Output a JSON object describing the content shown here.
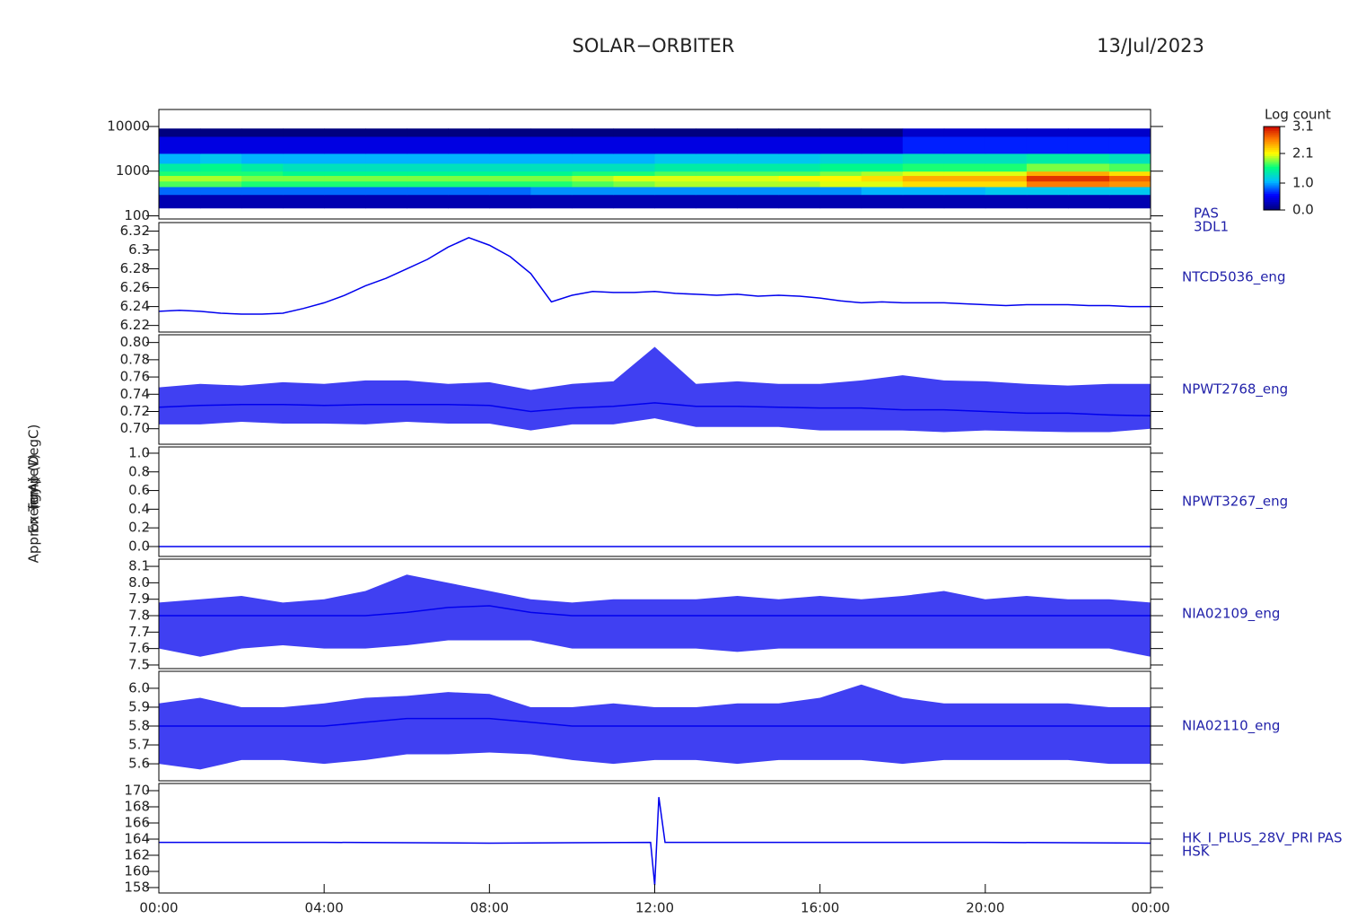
{
  "page": {
    "title": "SOLAR−ORBITER",
    "date": "13/Jul/2023"
  },
  "chart_data": [
    {
      "type": "heatmap",
      "side_label": [
        "PAS",
        "3DL1"
      ],
      "ylabel": "Energy (eV)",
      "log_y": true,
      "xlim": [
        0,
        24
      ],
      "ylim": [
        85,
        24000
      ],
      "yticks": [
        100,
        1000,
        10000
      ],
      "x": [
        0,
        1,
        2,
        3,
        4,
        5,
        6,
        7,
        8,
        9,
        10,
        11,
        12,
        13,
        14,
        15,
        16,
        17,
        18,
        19,
        20,
        21,
        22,
        23,
        24
      ],
      "bins": [
        150,
        300,
        450,
        600,
        800,
        1000,
        1500,
        2500,
        6000,
        9000
      ],
      "z": [
        [
          0.2,
          0.2,
          0.2,
          0.2,
          0.2,
          0.2,
          0.2,
          0.2,
          0.2,
          0.2,
          0.2,
          0.2,
          0.2,
          0.2,
          0.2,
          0.2,
          0.2,
          0.2,
          0.2,
          0.2,
          0.2,
          0.2,
          0.2,
          0.2
        ],
        [
          0.8,
          0.8,
          0.8,
          0.8,
          0.8,
          0.8,
          0.8,
          0.8,
          0.8,
          0.9,
          0.9,
          0.9,
          0.9,
          0.9,
          0.9,
          0.9,
          0.9,
          1.0,
          1.0,
          1.0,
          1.1,
          1.1,
          1.1,
          1.1
        ],
        [
          1.7,
          1.7,
          1.6,
          1.6,
          1.6,
          1.6,
          1.6,
          1.6,
          1.6,
          1.6,
          1.7,
          1.8,
          1.9,
          1.9,
          1.9,
          1.9,
          2.0,
          2.0,
          2.2,
          2.2,
          2.2,
          2.6,
          2.6,
          2.5
        ],
        [
          1.9,
          1.9,
          1.8,
          1.8,
          1.8,
          1.8,
          1.8,
          1.8,
          1.8,
          1.8,
          1.9,
          2.0,
          2.0,
          2.0,
          2.0,
          2.1,
          2.1,
          2.2,
          2.4,
          2.4,
          2.4,
          2.9,
          2.9,
          2.7
        ],
        [
          1.6,
          1.6,
          1.6,
          1.5,
          1.5,
          1.5,
          1.5,
          1.5,
          1.5,
          1.5,
          1.6,
          1.6,
          1.7,
          1.7,
          1.7,
          1.7,
          1.8,
          1.9,
          2.0,
          2.0,
          2.0,
          2.4,
          2.4,
          2.2
        ],
        [
          1.4,
          1.5,
          1.4,
          1.3,
          1.3,
          1.3,
          1.3,
          1.3,
          1.3,
          1.3,
          1.3,
          1.3,
          1.4,
          1.4,
          1.4,
          1.4,
          1.5,
          1.5,
          1.6,
          1.6,
          1.6,
          1.8,
          1.8,
          1.7
        ],
        [
          1.0,
          1.1,
          1.0,
          1.0,
          1.0,
          1.0,
          1.0,
          1.0,
          1.0,
          1.0,
          1.0,
          1.0,
          1.1,
          1.1,
          1.1,
          1.1,
          1.2,
          1.2,
          1.3,
          1.3,
          1.3,
          1.4,
          1.4,
          1.3
        ],
        [
          0.4,
          0.4,
          0.4,
          0.4,
          0.4,
          0.4,
          0.4,
          0.4,
          0.4,
          0.4,
          0.4,
          0.4,
          0.4,
          0.4,
          0.4,
          0.4,
          0.4,
          0.4,
          0.6,
          0.6,
          0.6,
          0.6,
          0.6,
          0.6
        ],
        [
          0.0,
          0.0,
          0.0,
          0.0,
          0.0,
          0.0,
          0.0,
          0.0,
          0.0,
          0.0,
          0.0,
          0.0,
          0.0,
          0.0,
          0.0,
          0.0,
          0.0,
          0.0,
          0.3,
          0.3,
          0.3,
          0.3,
          0.3,
          0.3
        ]
      ],
      "colorbar": {
        "label": "Log count",
        "zlim": [
          0,
          3.1
        ],
        "ticks": [
          {
            "value": 0,
            "label": "0.0"
          },
          {
            "value": 1,
            "label": "1.0"
          },
          2.1,
          3.1
        ],
        "colormap": [
          "#00007f",
          "#0000ff",
          "#00bfff",
          "#00ff80",
          "#ffff00",
          "#ff8000",
          "#cc0000"
        ]
      }
    },
    {
      "type": "line",
      "side_label": [
        "NTCD5036_eng"
      ],
      "ylabel": "Approx Temp (DegC)",
      "color": "#0000ee",
      "xlim": [
        0,
        24
      ],
      "ylim": [
        6.213,
        6.329
      ],
      "yticks": [
        6.22,
        6.24,
        6.26,
        6.28,
        6.3,
        {
          "value": 6.32,
          "label": "6.32"
        }
      ],
      "x": [
        0,
        0.5,
        1,
        1.5,
        2,
        2.5,
        3,
        3.5,
        4,
        4.5,
        5,
        5.5,
        6,
        6.5,
        7,
        7.5,
        8,
        8.5,
        9,
        9.5,
        10,
        10.5,
        11,
        11.5,
        12,
        12.5,
        13,
        13.5,
        14,
        14.5,
        15,
        15.5,
        16,
        16.5,
        17,
        17.5,
        18,
        18.5,
        19,
        19.5,
        20,
        20.5,
        21,
        21.5,
        22,
        22.5,
        23,
        23.5,
        24
      ],
      "values": [
        6.235,
        6.236,
        6.235,
        6.233,
        6.232,
        6.232,
        6.233,
        6.238,
        6.244,
        6.252,
        6.262,
        6.27,
        6.28,
        6.29,
        6.303,
        6.313,
        6.305,
        6.293,
        6.275,
        6.245,
        6.252,
        6.256,
        6.255,
        6.255,
        6.256,
        6.254,
        6.253,
        6.252,
        6.253,
        6.251,
        6.252,
        6.251,
        6.249,
        6.246,
        6.244,
        6.245,
        6.244,
        6.244,
        6.244,
        6.243,
        6.242,
        6.241,
        6.242,
        6.242,
        6.242,
        6.241,
        6.241,
        6.24,
        6.24
      ]
    },
    {
      "type": "line",
      "side_label": [
        "NPWT2768_eng"
      ],
      "color": "#0000ee",
      "xlim": [
        0,
        24
      ],
      "ylim": [
        0.682,
        0.809
      ],
      "yticks": [
        {
          "value": 0.7,
          "label": "0.70"
        },
        0.72,
        0.74,
        0.76,
        0.78,
        {
          "value": 0.8,
          "label": "0.80"
        }
      ],
      "x": [
        0,
        1,
        2,
        3,
        4,
        5,
        6,
        7,
        8,
        9,
        10,
        11,
        12,
        13,
        14,
        15,
        16,
        17,
        18,
        19,
        20,
        21,
        22,
        23,
        24
      ],
      "values": [
        0.725,
        0.727,
        0.728,
        0.728,
        0.727,
        0.728,
        0.728,
        0.728,
        0.727,
        0.72,
        0.724,
        0.726,
        0.73,
        0.726,
        0.726,
        0.725,
        0.724,
        0.724,
        0.722,
        0.722,
        0.72,
        0.718,
        0.718,
        0.716,
        0.715
      ],
      "max": [
        0.748,
        0.752,
        0.75,
        0.754,
        0.752,
        0.756,
        0.756,
        0.752,
        0.754,
        0.745,
        0.752,
        0.755,
        0.795,
        0.752,
        0.755,
        0.752,
        0.752,
        0.756,
        0.762,
        0.756,
        0.755,
        0.752,
        0.75,
        0.752,
        0.752
      ],
      "min": [
        0.705,
        0.705,
        0.708,
        0.706,
        0.706,
        0.705,
        0.708,
        0.706,
        0.706,
        0.698,
        0.705,
        0.705,
        0.712,
        0.702,
        0.702,
        0.702,
        0.698,
        0.698,
        0.698,
        0.696,
        0.698,
        0.697,
        0.696,
        0.696,
        0.7
      ]
    },
    {
      "type": "line",
      "side_label": [
        "NPWT3267_eng"
      ],
      "color": "#0000ee",
      "xlim": [
        0,
        24
      ],
      "ylim": [
        -0.106,
        1.067
      ],
      "yticks": [
        {
          "value": 0,
          "label": "0.0"
        },
        0.2,
        0.4,
        0.6,
        0.8,
        {
          "value": 1,
          "label": "1.0"
        }
      ],
      "x": [
        0,
        24
      ],
      "values": [
        0,
        0
      ]
    },
    {
      "type": "line",
      "side_label": [
        "NIA02109_eng"
      ],
      "color": "#0000ee",
      "xlim": [
        0,
        24
      ],
      "ylim": [
        7.478,
        8.144
      ],
      "yticks": [
        7.5,
        7.6,
        7.7,
        7.8,
        7.9,
        {
          "value": 8,
          "label": "8.0"
        },
        8.1
      ],
      "x": [
        0,
        1,
        2,
        3,
        4,
        5,
        6,
        7,
        8,
        9,
        10,
        11,
        12,
        13,
        14,
        15,
        16,
        17,
        18,
        19,
        20,
        21,
        22,
        23,
        24
      ],
      "values": [
        7.8,
        7.8,
        7.8,
        7.8,
        7.8,
        7.8,
        7.82,
        7.85,
        7.86,
        7.82,
        7.8,
        7.8,
        7.8,
        7.8,
        7.8,
        7.8,
        7.8,
        7.8,
        7.8,
        7.8,
        7.8,
        7.8,
        7.8,
        7.8,
        7.8
      ],
      "max": [
        7.88,
        7.9,
        7.92,
        7.88,
        7.9,
        7.95,
        8.05,
        8.0,
        7.95,
        7.9,
        7.88,
        7.9,
        7.9,
        7.9,
        7.92,
        7.9,
        7.92,
        7.9,
        7.92,
        7.95,
        7.9,
        7.92,
        7.9,
        7.9,
        7.88
      ],
      "min": [
        7.6,
        7.55,
        7.6,
        7.62,
        7.6,
        7.6,
        7.62,
        7.65,
        7.65,
        7.65,
        7.6,
        7.6,
        7.6,
        7.6,
        7.58,
        7.6,
        7.6,
        7.6,
        7.6,
        7.6,
        7.6,
        7.6,
        7.6,
        7.6,
        7.55
      ]
    },
    {
      "type": "line",
      "side_label": [
        "NIA02110_eng"
      ],
      "color": "#0000ee",
      "xlim": [
        0,
        24
      ],
      "ylim": [
        5.51,
        6.09
      ],
      "yticks": [
        5.6,
        5.7,
        5.8,
        5.9,
        {
          "value": 6,
          "label": "6.0"
        }
      ],
      "x": [
        0,
        1,
        2,
        3,
        4,
        5,
        6,
        7,
        8,
        9,
        10,
        11,
        12,
        13,
        14,
        15,
        16,
        17,
        18,
        19,
        20,
        21,
        22,
        23,
        24
      ],
      "values": [
        5.8,
        5.8,
        5.8,
        5.8,
        5.8,
        5.82,
        5.84,
        5.84,
        5.84,
        5.82,
        5.8,
        5.8,
        5.8,
        5.8,
        5.8,
        5.8,
        5.8,
        5.8,
        5.8,
        5.8,
        5.8,
        5.8,
        5.8,
        5.8,
        5.8
      ],
      "max": [
        5.92,
        5.95,
        5.9,
        5.9,
        5.92,
        5.95,
        5.96,
        5.98,
        5.97,
        5.9,
        5.9,
        5.92,
        5.9,
        5.9,
        5.92,
        5.92,
        5.95,
        6.02,
        5.95,
        5.92,
        5.92,
        5.92,
        5.92,
        5.9,
        5.9
      ],
      "min": [
        5.6,
        5.57,
        5.62,
        5.62,
        5.6,
        5.62,
        5.65,
        5.65,
        5.66,
        5.65,
        5.62,
        5.6,
        5.62,
        5.62,
        5.6,
        5.62,
        5.62,
        5.62,
        5.6,
        5.62,
        5.62,
        5.62,
        5.62,
        5.6,
        5.6
      ]
    },
    {
      "type": "line",
      "side_label": [
        "HK_I_PLUS_28V_PRI PAS",
        "HSK"
      ],
      "ylabel": "(mA)",
      "color": "#0000ee",
      "xlim": [
        0,
        24
      ],
      "ylim": [
        157.33,
        170.89
      ],
      "yticks": [
        158,
        160,
        162,
        164,
        166,
        168,
        170
      ],
      "xticks": [
        {
          "value": 0,
          "label": "00:00"
        },
        {
          "value": 4,
          "label": "04:00"
        },
        {
          "value": 8,
          "label": "08:00"
        },
        {
          "value": 12,
          "label": "12:00"
        },
        {
          "value": 16,
          "label": "16:00"
        },
        {
          "value": 20,
          "label": "20:00"
        },
        {
          "value": 24,
          "label": "00:00"
        }
      ],
      "x": [
        0,
        4,
        8,
        11.9,
        12.0,
        12.1,
        12.25,
        16,
        20,
        24
      ],
      "values": [
        163.6,
        163.6,
        163.5,
        163.6,
        158.3,
        169.2,
        163.6,
        163.6,
        163.6,
        163.5
      ]
    }
  ]
}
